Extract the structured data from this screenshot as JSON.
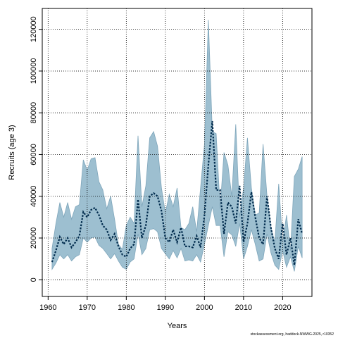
{
  "chart_data": {
    "type": "line",
    "title": "",
    "xlabel": "Years",
    "ylabel": "Recruits (age 3)",
    "xlim": [
      1958.5,
      2027.5
    ],
    "ylim": [
      -8000,
      130000
    ],
    "x_ticks": [
      1960,
      1970,
      1980,
      1990,
      2000,
      2010,
      2020
    ],
    "y_ticks": [
      0,
      20000,
      40000,
      60000,
      80000,
      100000,
      120000
    ],
    "grid": true,
    "colors": {
      "band": "#9dbfd0",
      "band_edge": "#7fa6bb",
      "line": "#002b4d"
    },
    "x": [
      1961,
      1962,
      1963,
      1964,
      1965,
      1966,
      1967,
      1968,
      1969,
      1970,
      1971,
      1972,
      1973,
      1974,
      1975,
      1976,
      1977,
      1978,
      1979,
      1980,
      1981,
      1982,
      1983,
      1984,
      1985,
      1986,
      1987,
      1988,
      1989,
      1990,
      1991,
      1992,
      1993,
      1994,
      1995,
      1996,
      1997,
      1998,
      1999,
      2000,
      2001,
      2002,
      2003,
      2004,
      2005,
      2006,
      2007,
      2008,
      2009,
      2010,
      2011,
      2012,
      2013,
      2014,
      2015,
      2016,
      2017,
      2018,
      2019,
      2020,
      2021,
      2022,
      2023,
      2024,
      2025
    ],
    "series": [
      {
        "values": [
          8500,
          14000,
          20500,
          17000,
          20000,
          15500,
          18000,
          21000,
          32500,
          30000,
          33500,
          34500,
          31000,
          26000,
          24000,
          19000,
          22000,
          16000,
          12000,
          11000,
          15000,
          17000,
          38500,
          20000,
          26000,
          40000,
          41500,
          40000,
          33000,
          20000,
          18000,
          24000,
          18000,
          25000,
          16000,
          16000,
          15500,
          21000,
          15500,
          31000,
          55000,
          76000,
          43000,
          43000,
          22000,
          37000,
          35000,
          27000,
          45000,
          18000,
          27000,
          42000,
          30000,
          20000,
          17000,
          40000,
          25000,
          15000,
          10000,
          27000,
          12000,
          20000,
          7000,
          29000,
          22000
        ]
      },
      {
        "values": [
          5000,
          8000,
          12000,
          10000,
          12000,
          9000,
          11000,
          12000,
          20000,
          18000,
          20000,
          20500,
          16500,
          15000,
          12500,
          10000,
          12500,
          9000,
          6000,
          5000,
          8500,
          10000,
          22000,
          12000,
          15000,
          24000,
          24500,
          23000,
          15000,
          12500,
          10000,
          14000,
          10500,
          15000,
          9000,
          9500,
          9000,
          12000,
          8500,
          17000,
          26000,
          35000,
          26000,
          26000,
          11000,
          23000,
          21500,
          16000,
          27000,
          10000,
          16000,
          24000,
          17000,
          9000,
          10000,
          22000,
          13000,
          7000,
          5000,
          14000,
          6000,
          11000,
          4000,
          16000,
          10500
        ]
      },
      {
        "values": [
          15000,
          27000,
          37000,
          30000,
          37000,
          29000,
          35000,
          36000,
          57500,
          52500,
          58000,
          58500,
          47000,
          43000,
          34000,
          40000,
          29000,
          17000,
          14500,
          26000,
          30000,
          27000,
          69000,
          35000,
          45000,
          68000,
          71000,
          64000,
          44000,
          32000,
          41000,
          35000,
          44000,
          25000,
          24000,
          27000,
          35000,
          23000,
          44000,
          65000,
          124500,
          71000,
          70000,
          34000,
          61000,
          55000,
          40000,
          74500,
          30000,
          44000,
          68000,
          44000,
          31000,
          32000,
          65000,
          40000,
          25000,
          18000,
          46000,
          18000,
          31000,
          14000,
          49500,
          53000,
          59000
        ]
      }
    ]
  },
  "footer_text": "stockassessment.org, haddock-NWWG-2025, r10352"
}
